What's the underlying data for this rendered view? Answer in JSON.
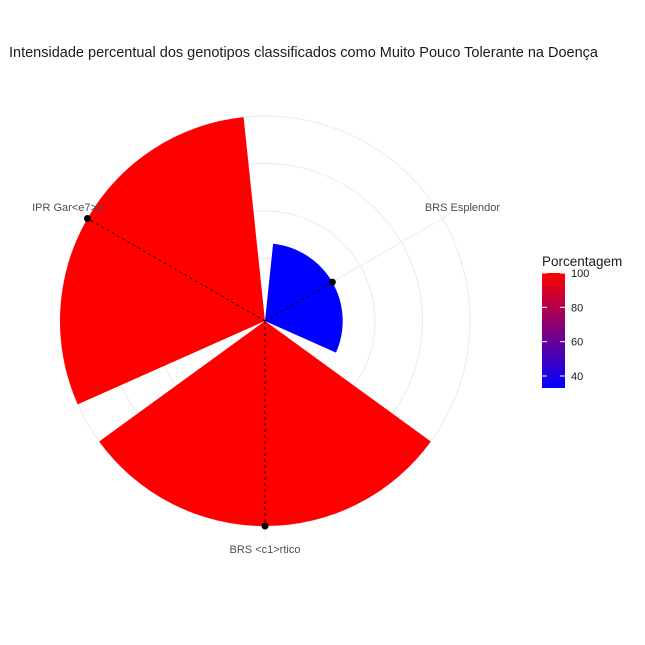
{
  "chart_data": {
    "type": "polar-bar",
    "title": "Intensidade percentual dos genotipos classificados como Muito Pouco Tolerante na Doença",
    "categories": [
      "BRS Esplendor",
      "BRS <c1>rtico",
      "IPR Gar<e7>a"
    ],
    "values": [
      33,
      100,
      100
    ],
    "colors": [
      "#0000ff",
      "#ff0000",
      "#ff0000"
    ],
    "rlim": [
      0,
      100
    ],
    "grid": true,
    "legend": {
      "title": "Porcentagem",
      "position": "right",
      "ticks": [
        "100",
        "80",
        "60",
        "40"
      ],
      "tick_values": [
        100,
        80,
        60,
        40
      ],
      "range": [
        33,
        100
      ],
      "color_low": "#0000ff",
      "color_high": "#ff0000"
    }
  }
}
